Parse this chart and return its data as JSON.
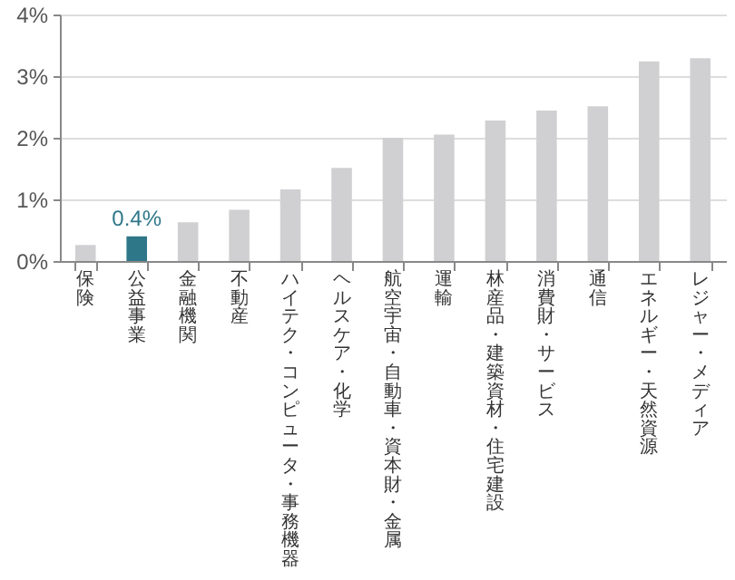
{
  "chart_data": {
    "type": "bar",
    "categories": [
      "保険",
      "公益事業",
      "金融機関",
      "不動産",
      "ハイテク・コンピュータ・事務機器",
      "ヘルスケア・化学",
      "航空宇宙・自動車・資本財・金属",
      "運輸",
      "林産品・建築資材・住宅建設",
      "消費財・サービス",
      "通信",
      "エネルギー・天然資源",
      "レジャー・メディア"
    ],
    "values": [
      0.26,
      0.4,
      0.63,
      0.83,
      1.16,
      1.51,
      2.0,
      2.05,
      2.28,
      2.44,
      2.51,
      3.24,
      3.29
    ],
    "colors": [
      "#d0d0d2",
      "#2e7789",
      "#d0d0d2",
      "#d0d0d2",
      "#d0d0d2",
      "#d0d0d2",
      "#d0d0d2",
      "#d0d0d2",
      "#d0d0d2",
      "#d0d0d2",
      "#d0d0d2",
      "#d0d0d2",
      "#d0d0d2"
    ],
    "value_labels": [
      null,
      "0.4%",
      null,
      null,
      null,
      null,
      null,
      null,
      null,
      null,
      null,
      null,
      null
    ],
    "ylim": [
      0,
      4
    ],
    "yticks": [
      {
        "value": 0,
        "label": "0%"
      },
      {
        "value": 1,
        "label": "1%"
      },
      {
        "value": 2,
        "label": "2%"
      },
      {
        "value": 3,
        "label": "3%"
      },
      {
        "value": 4,
        "label": "4%"
      }
    ],
    "grid": "y"
  }
}
